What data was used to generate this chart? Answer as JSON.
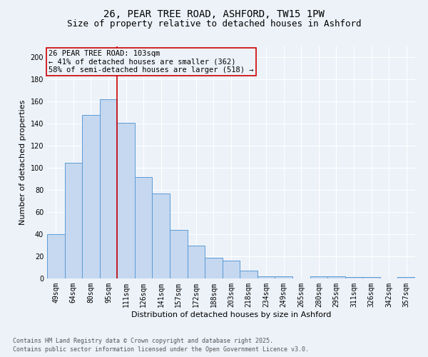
{
  "title_line1": "26, PEAR TREE ROAD, ASHFORD, TW15 1PW",
  "title_line2": "Size of property relative to detached houses in Ashford",
  "xlabel": "Distribution of detached houses by size in Ashford",
  "ylabel": "Number of detached properties",
  "categories": [
    "49sqm",
    "64sqm",
    "80sqm",
    "95sqm",
    "111sqm",
    "126sqm",
    "141sqm",
    "157sqm",
    "172sqm",
    "188sqm",
    "203sqm",
    "218sqm",
    "234sqm",
    "249sqm",
    "265sqm",
    "280sqm",
    "295sqm",
    "311sqm",
    "326sqm",
    "342sqm",
    "357sqm"
  ],
  "values": [
    40,
    105,
    148,
    162,
    141,
    92,
    77,
    44,
    30,
    19,
    16,
    7,
    2,
    2,
    0,
    2,
    2,
    1,
    1,
    0,
    1
  ],
  "bar_color": "#c5d8f0",
  "bar_edge_color": "#5b9bd5",
  "highlight_color": "#cc0000",
  "annotation_text": "26 PEAR TREE ROAD: 103sqm\n← 41% of detached houses are smaller (362)\n58% of semi-detached houses are larger (518) →",
  "footnote1": "Contains HM Land Registry data © Crown copyright and database right 2025.",
  "footnote2": "Contains public sector information licensed under the Open Government Licence v3.0.",
  "ylim": [
    0,
    210
  ],
  "yticks": [
    0,
    20,
    40,
    60,
    80,
    100,
    120,
    140,
    160,
    180,
    200
  ],
  "background_color": "#edf2f9",
  "grid_color": "#ffffff",
  "title_fontsize": 10,
  "subtitle_fontsize": 9,
  "axis_label_fontsize": 8,
  "tick_fontsize": 7,
  "annotation_fontsize": 7.5,
  "footnote_fontsize": 6
}
